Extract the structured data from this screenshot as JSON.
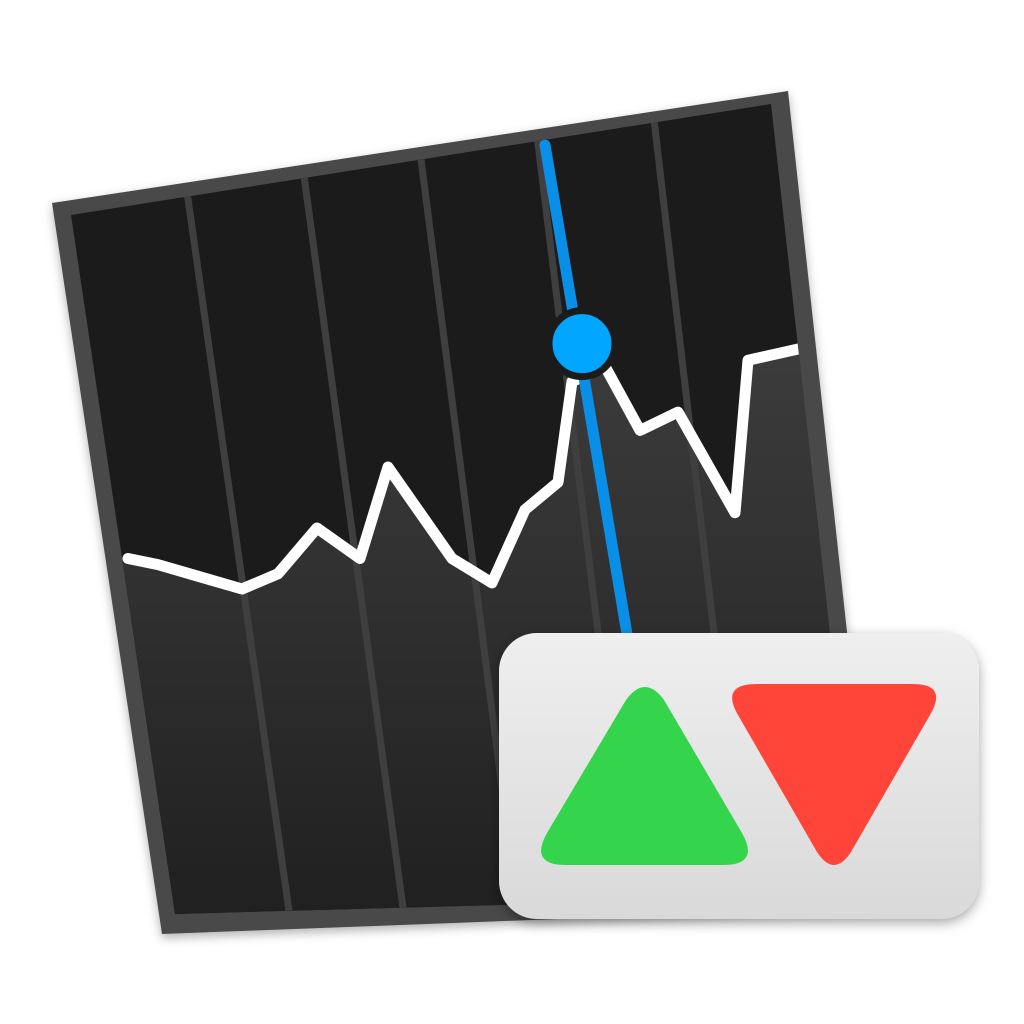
{
  "app_icon": {
    "name": "stocks-app-icon",
    "colors": {
      "background": "#ffffff",
      "card_border": "#4a4a4a",
      "card_fill": "#1b1b1b",
      "column_divider": "#3f3f3f",
      "area_top": "#3c3c3c",
      "area_bottom": "#1e1e1e",
      "chart_line": "#ffffff",
      "cursor_line": "#0a8fe8",
      "cursor_dot": "#00a6ff",
      "badge_top": "#efefef",
      "badge_bottom": "#d9d9d9",
      "up_arrow": "#34d44c",
      "down_arrow": "#ff453a"
    },
    "chart_card": {
      "icon": "stock-line-chart-icon",
      "column_count": 6,
      "series_values": [
        0.3,
        0.28,
        0.24,
        0.2,
        0.25,
        0.4,
        0.3,
        0.6,
        0.3,
        0.22,
        0.46,
        0.55,
        0.88,
        0.93,
        0.72,
        0.78,
        0.45,
        0.95,
        1.0
      ],
      "cursor_index": 12
    },
    "badge": {
      "up_icon": "triangle-up-icon",
      "down_icon": "triangle-down-icon"
    }
  }
}
